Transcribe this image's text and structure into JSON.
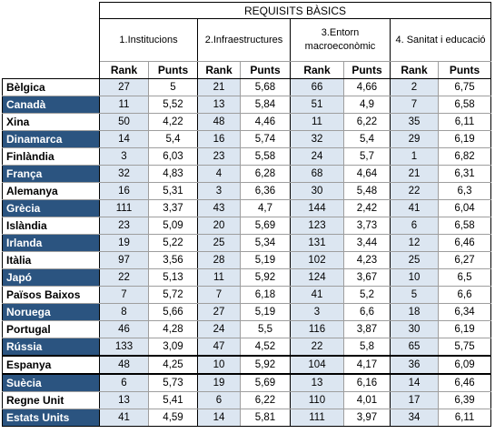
{
  "header": {
    "title": "REQUISITS BÀSICS",
    "pillars": [
      "1.Institucions",
      "2.Infraestructures",
      "3.Entorn macroeconòmic",
      "4. Sanitat i educació"
    ],
    "rank_label": "Rank",
    "points_label": "Punts"
  },
  "rows": [
    {
      "country": "Bèlgica",
      "style": "white",
      "values": [
        "27",
        "5",
        "21",
        "5,68",
        "66",
        "4,66",
        "2",
        "6,75"
      ]
    },
    {
      "country": "Canadà",
      "style": "dark",
      "values": [
        "11",
        "5,52",
        "13",
        "5,84",
        "51",
        "4,9",
        "7",
        "6,58"
      ]
    },
    {
      "country": "Xina",
      "style": "white",
      "values": [
        "50",
        "4,22",
        "48",
        "4,46",
        "11",
        "6,22",
        "35",
        "6,11"
      ]
    },
    {
      "country": "Dinamarca",
      "style": "dark",
      "values": [
        "14",
        "5,4",
        "16",
        "5,74",
        "32",
        "5,4",
        "29",
        "6,19"
      ]
    },
    {
      "country": "Finlàndia",
      "style": "white",
      "values": [
        "3",
        "6,03",
        "23",
        "5,58",
        "24",
        "5,7",
        "1",
        "6,82"
      ]
    },
    {
      "country": "França",
      "style": "dark",
      "values": [
        "32",
        "4,83",
        "4",
        "6,28",
        "68",
        "4,64",
        "21",
        "6,31"
      ]
    },
    {
      "country": "Alemanya",
      "style": "white",
      "values": [
        "16",
        "5,31",
        "3",
        "6,36",
        "30",
        "5,48",
        "22",
        "6,3"
      ]
    },
    {
      "country": "Grècia",
      "style": "dark",
      "values": [
        "111",
        "3,37",
        "43",
        "4,7",
        "144",
        "2,42",
        "41",
        "6,04"
      ]
    },
    {
      "country": "Islàndia",
      "style": "white",
      "values": [
        "23",
        "5,09",
        "20",
        "5,69",
        "123",
        "3,73",
        "6",
        "6,58"
      ]
    },
    {
      "country": "Irlanda",
      "style": "dark",
      "values": [
        "19",
        "5,22",
        "25",
        "5,34",
        "131",
        "3,44",
        "12",
        "6,46"
      ]
    },
    {
      "country": "Itàlia",
      "style": "white",
      "values": [
        "97",
        "3,56",
        "28",
        "5,19",
        "102",
        "4,23",
        "25",
        "6,27"
      ]
    },
    {
      "country": "Japó",
      "style": "dark",
      "values": [
        "22",
        "5,13",
        "11",
        "5,92",
        "124",
        "3,67",
        "10",
        "6,5"
      ]
    },
    {
      "country": "Països Baixos",
      "style": "white",
      "values": [
        "7",
        "5,72",
        "7",
        "6,18",
        "41",
        "5,2",
        "5",
        "6,6"
      ]
    },
    {
      "country": "Noruega",
      "style": "dark",
      "values": [
        "8",
        "5,66",
        "27",
        "5,19",
        "3",
        "6,6",
        "18",
        "6,34"
      ]
    },
    {
      "country": "Portugal",
      "style": "white",
      "values": [
        "46",
        "4,28",
        "24",
        "5,5",
        "116",
        "3,87",
        "30",
        "6,19"
      ]
    },
    {
      "country": "Rússia",
      "style": "dark",
      "values": [
        "133",
        "3,09",
        "47",
        "4,52",
        "22",
        "5,8",
        "65",
        "5,75"
      ]
    },
    {
      "country": "Espanya",
      "style": "white",
      "values": [
        "48",
        "4,25",
        "10",
        "5,92",
        "104",
        "4,17",
        "36",
        "6,09"
      ]
    },
    {
      "country": "Suècia",
      "style": "dark",
      "values": [
        "6",
        "5,73",
        "19",
        "5,69",
        "13",
        "6,16",
        "14",
        "6,46"
      ]
    },
    {
      "country": "Regne Unit",
      "style": "white",
      "values": [
        "13",
        "5,41",
        "6",
        "6,22",
        "110",
        "4,01",
        "17",
        "6,39"
      ]
    },
    {
      "country": "Estats Units",
      "style": "dark",
      "values": [
        "41",
        "4,59",
        "14",
        "5,81",
        "111",
        "3,97",
        "34",
        "6,11"
      ]
    }
  ],
  "colors": {
    "dark_row": "#2b5480",
    "rank_column": "#dce6f1"
  }
}
